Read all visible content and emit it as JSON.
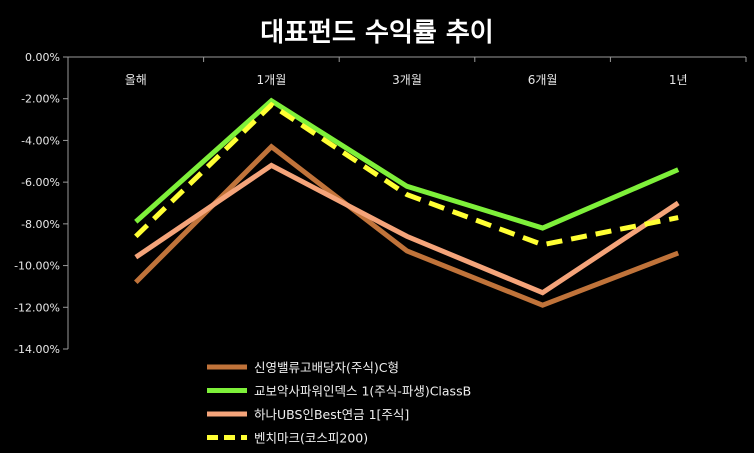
{
  "chart_data": {
    "type": "line",
    "title": "대표펀드 수익률 추이",
    "categories": [
      "올해",
      "1개월",
      "3개월",
      "6개월",
      "1년"
    ],
    "y_ticks": [
      "0.00%",
      "-2.00%",
      "-4.00%",
      "-6.00%",
      "-8.00%",
      "-10.00%",
      "-12.00%",
      "-14.00%"
    ],
    "ylim": [
      -14,
      0
    ],
    "grid": false,
    "legend_position": "bottom",
    "series": [
      {
        "name": "신영밸류고배당자(주식)C형",
        "values": [
          -10.8,
          -4.3,
          -9.3,
          -11.9,
          -9.4
        ],
        "color": "#c0733a",
        "dash": false
      },
      {
        "name": "교보악사파워인덱스 1(주식-파생)ClassB",
        "values": [
          -7.9,
          -2.1,
          -6.2,
          -8.2,
          -5.4
        ],
        "color": "#7ef03a",
        "dash": false
      },
      {
        "name": "하나UBS인Best연금 1[주식]",
        "values": [
          -9.6,
          -5.2,
          -8.6,
          -11.3,
          -7.0
        ],
        "color": "#f5a47a",
        "dash": false
      },
      {
        "name": "벤치마크(코스피200)",
        "values": [
          -8.6,
          -2.3,
          -6.6,
          -9.0,
          -7.7
        ],
        "color": "#ffff33",
        "dash": true
      }
    ]
  }
}
